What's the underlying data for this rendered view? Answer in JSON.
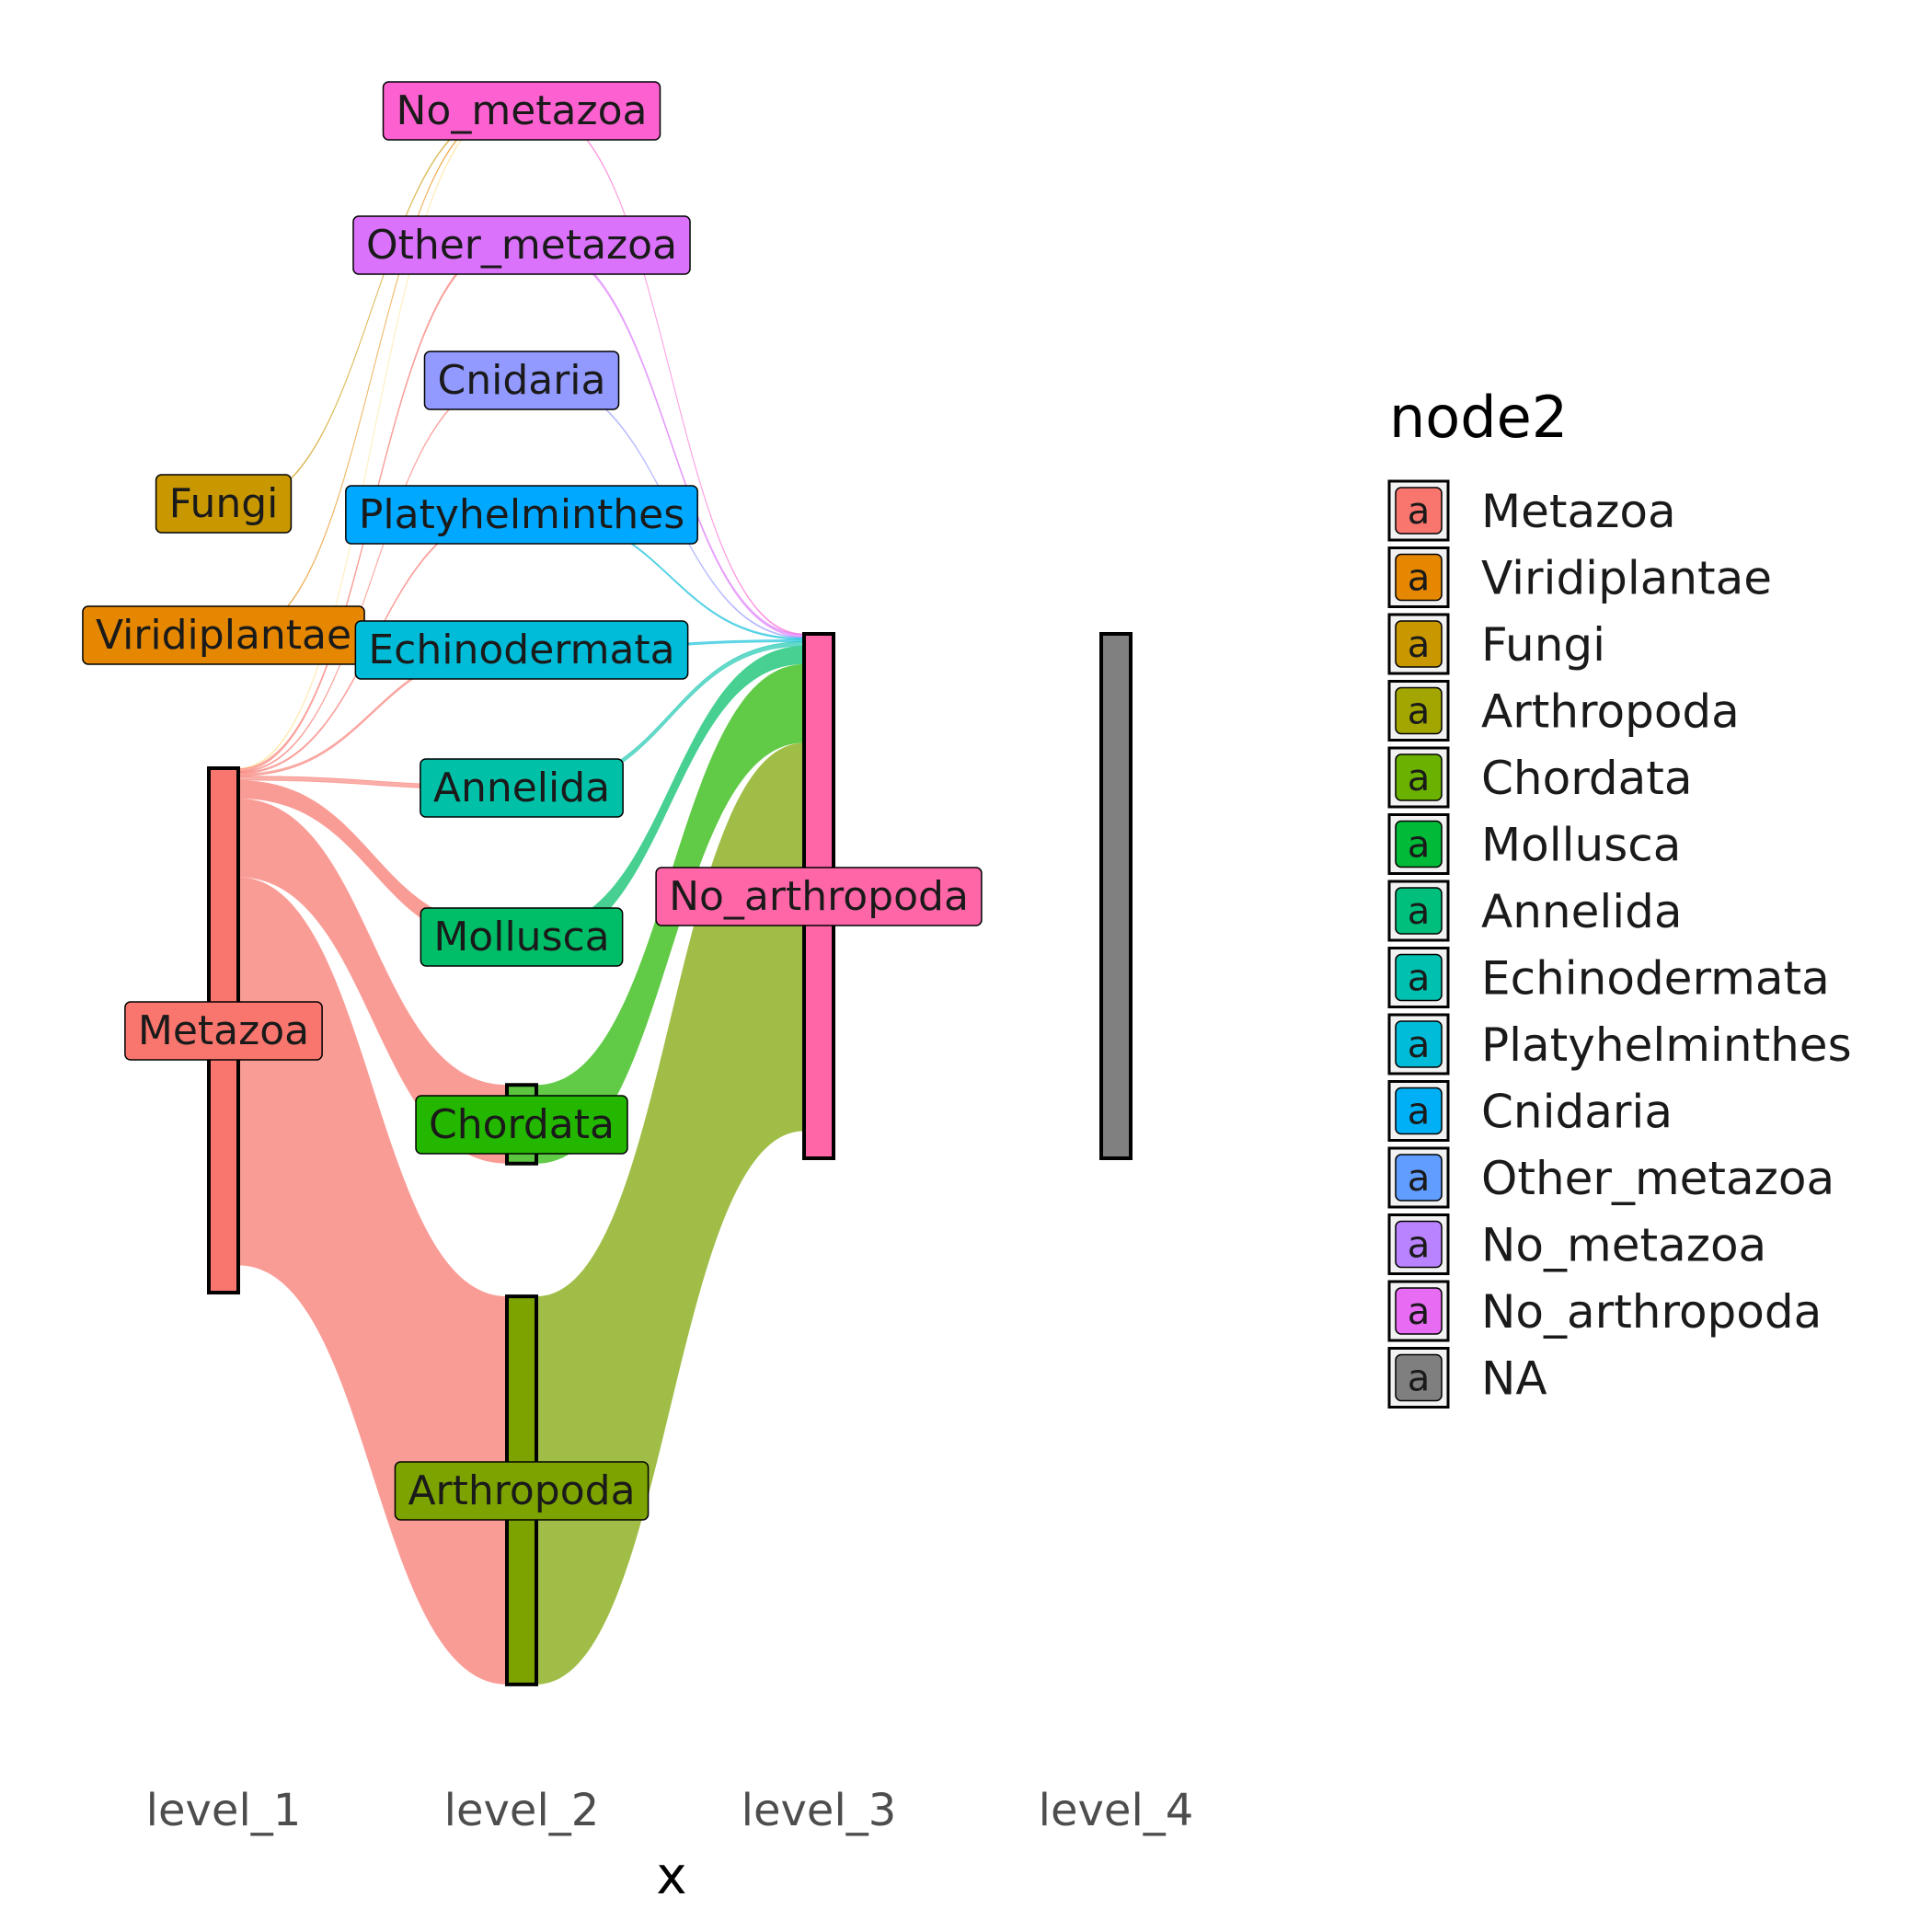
{
  "chart_data": {
    "type": "sankey",
    "title": "",
    "xlabel": "x",
    "ylabel": "",
    "x_categories": [
      "level_1",
      "level_2",
      "level_3",
      "level_4"
    ],
    "legend": {
      "title": "node2",
      "placement": "right",
      "key_glyph": "a",
      "entries": [
        {
          "name": "Metazoa",
          "color": "#F8766D"
        },
        {
          "name": "Viridiplantae",
          "color": "#E58700"
        },
        {
          "name": "Fungi",
          "color": "#C99800"
        },
        {
          "name": "Arthropoda",
          "color": "#A3A500"
        },
        {
          "name": "Chordata",
          "color": "#6BB100"
        },
        {
          "name": "Mollusca",
          "color": "#00BA38"
        },
        {
          "name": "Annelida",
          "color": "#00BF7D"
        },
        {
          "name": "Echinodermata",
          "color": "#00C0AF"
        },
        {
          "name": "Platyhelminthes",
          "color": "#00BCD8"
        },
        {
          "name": "Cnidaria",
          "color": "#00B0F6"
        },
        {
          "name": "Other_metazoa",
          "color": "#619CFF"
        },
        {
          "name": "No_metazoa",
          "color": "#B983FF"
        },
        {
          "name": "No_arthropoda",
          "color": "#E76BF3"
        },
        {
          "name": "NA",
          "color": "#7F7F7F"
        }
      ]
    },
    "nodes": [
      {
        "name": "Metazoa",
        "level": "level_1",
        "value": 100,
        "fill": "#F8766D",
        "label_fill": "#F8766D",
        "bar": true
      },
      {
        "name": "Viridiplantae",
        "level": "level_1",
        "value": 0.1,
        "fill": "#E58700",
        "label_fill": "#E58700",
        "bar": false
      },
      {
        "name": "Fungi",
        "level": "level_1",
        "value": 0.1,
        "fill": "#C99800",
        "label_fill": "#C99800",
        "bar": false
      },
      {
        "name": "No_metazoa",
        "level": "level_2",
        "value": 0.1,
        "fill": "#FD61D1",
        "label_fill": "#FD61D1",
        "bar": false
      },
      {
        "name": "Other_metazoa",
        "level": "level_2",
        "value": 0.5,
        "fill": "#DB72FB",
        "label_fill": "#DB72FB",
        "bar": false
      },
      {
        "name": "Cnidaria",
        "level": "level_2",
        "value": 0.2,
        "fill": "#939AFF",
        "label_fill": "#939AFF",
        "bar": false
      },
      {
        "name": "Platyhelminthes",
        "level": "level_2",
        "value": 0.3,
        "fill": "#00A9FF",
        "label_fill": "#00A9FF",
        "bar": false
      },
      {
        "name": "Echinodermata",
        "level": "level_2",
        "value": 0.4,
        "fill": "#00BCD8",
        "label_fill": "#00BCD8",
        "bar": false
      },
      {
        "name": "Annelida",
        "level": "level_2",
        "value": 0.8,
        "fill": "#00C1A7",
        "label_fill": "#00C1A7",
        "bar": false
      },
      {
        "name": "Mollusca",
        "level": "level_2",
        "value": 3.5,
        "fill": "#00BE67",
        "label_fill": "#00BE67",
        "bar": false
      },
      {
        "name": "Chordata",
        "level": "level_2",
        "value": 15,
        "fill": "#5BC540",
        "label_fill": "#24B700",
        "bar": true
      },
      {
        "name": "Arthropoda",
        "level": "level_2",
        "value": 74,
        "fill": "#7CA300",
        "label_fill": "#7CA300",
        "bar": true
      },
      {
        "name": "No_arthropoda",
        "level": "level_3",
        "value": 100,
        "fill": "#FF66A8",
        "label_fill": "#FF66A8",
        "bar": true
      },
      {
        "name": "NA",
        "level": "level_4",
        "value": 100,
        "fill": "#808080",
        "label_fill": "#808080",
        "bar": true
      }
    ],
    "links": [
      {
        "source": "Metazoa",
        "target": "No_metazoa",
        "value": 0.1,
        "color": "#FFE08A"
      },
      {
        "source": "Metazoa",
        "target": "Other_metazoa",
        "value": 0.5,
        "color": "#F8766D"
      },
      {
        "source": "Metazoa",
        "target": "Cnidaria",
        "value": 0.2,
        "color": "#F8766D"
      },
      {
        "source": "Metazoa",
        "target": "Platyhelminthes",
        "value": 0.3,
        "color": "#F8766D"
      },
      {
        "source": "Metazoa",
        "target": "Echinodermata",
        "value": 0.4,
        "color": "#F8766D"
      },
      {
        "source": "Metazoa",
        "target": "Annelida",
        "value": 0.8,
        "color": "#F8766D"
      },
      {
        "source": "Metazoa",
        "target": "Mollusca",
        "value": 3.5,
        "color": "#F8766D"
      },
      {
        "source": "Metazoa",
        "target": "Chordata",
        "value": 15,
        "color": "#F8766D"
      },
      {
        "source": "Metazoa",
        "target": "Arthropoda",
        "value": 74,
        "color": "#F8766D"
      },
      {
        "source": "Fungi",
        "target": "No_metazoa",
        "value": 0.05,
        "color": "#C99800"
      },
      {
        "source": "Viridiplantae",
        "target": "No_metazoa",
        "value": 0.05,
        "color": "#E58700"
      },
      {
        "source": "No_metazoa",
        "target": "No_arthropoda",
        "value": 0.1,
        "color": "#FD61D1"
      },
      {
        "source": "Other_metazoa",
        "target": "No_arthropoda",
        "value": 0.5,
        "color": "#DB72FB"
      },
      {
        "source": "Cnidaria",
        "target": "No_arthropoda",
        "value": 0.2,
        "color": "#939AFF"
      },
      {
        "source": "Platyhelminthes",
        "target": "No_arthropoda",
        "value": 0.3,
        "color": "#00BCD8"
      },
      {
        "source": "Echinodermata",
        "target": "No_arthropoda",
        "value": 0.4,
        "color": "#00BCD8"
      },
      {
        "source": "Annelida",
        "target": "No_arthropoda",
        "value": 0.8,
        "color": "#00C1A7"
      },
      {
        "source": "Mollusca",
        "target": "No_arthropoda",
        "value": 3.5,
        "color": "#00BE67"
      },
      {
        "source": "Chordata",
        "target": "No_arthropoda",
        "value": 15,
        "color": "#24B700"
      },
      {
        "source": "Arthropoda",
        "target": "No_arthropoda",
        "value": 74,
        "color": "#7CA300"
      }
    ]
  }
}
